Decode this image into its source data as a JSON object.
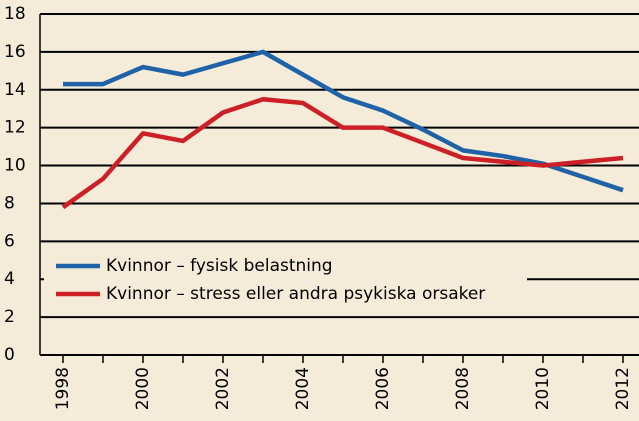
{
  "chart_data": {
    "type": "line",
    "x": [
      1998,
      1999,
      2000,
      2001,
      2002,
      2003,
      2004,
      2005,
      2006,
      2007,
      2008,
      2009,
      2010,
      2011,
      2012
    ],
    "series": [
      {
        "name": "Kvinnor – fysisk belastning",
        "color": "#1f62a8",
        "values": [
          14.3,
          14.3,
          15.2,
          14.8,
          15.4,
          16.0,
          14.8,
          13.6,
          12.9,
          11.9,
          10.8,
          10.5,
          10.1,
          9.4,
          8.7
        ]
      },
      {
        "name": "Kvinnor – stress eller andra psykiska orsaker",
        "color": "#cc1f26",
        "values": [
          7.8,
          9.3,
          11.7,
          11.3,
          12.8,
          13.5,
          13.3,
          12.0,
          12.0,
          11.2,
          10.4,
          10.2,
          10.0,
          10.2,
          10.4
        ]
      }
    ],
    "xlim": [
      1997.425,
      2012.4
    ],
    "xticks": [
      1998,
      2000,
      2002,
      2004,
      2006,
      2008,
      2010,
      2012
    ],
    "ylim": [
      0,
      18
    ],
    "yticks": [
      0,
      2,
      4,
      6,
      8,
      10,
      12,
      14,
      16,
      18
    ],
    "grid": true,
    "legend": "lower left"
  }
}
